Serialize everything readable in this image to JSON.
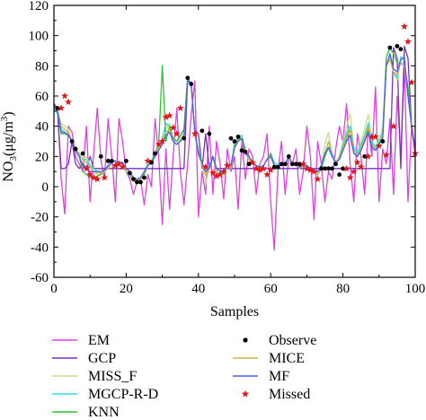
{
  "chart_data": {
    "type": "line",
    "xlabel": "Samples",
    "ylabel_main": "NO",
    "ylabel_sub": "3",
    "ylabel_units": "(μg/m",
    "ylabel_sup": "3",
    "ylabel_close": ")",
    "xlim": [
      0,
      100
    ],
    "ylim": [
      -60,
      120
    ],
    "xticks": [
      0,
      20,
      40,
      60,
      80,
      100
    ],
    "yticks": [
      -60,
      -40,
      -20,
      0,
      20,
      40,
      60,
      80,
      100,
      120
    ],
    "colors": {
      "EM": "#e040e0",
      "GCP": "#7b2fbe",
      "MISS_F": "#c5e08a",
      "MGCP-R-D": "#22e0e8",
      "KNN": "#2ec42e",
      "MICE": "#d9b04a",
      "MF": "#4a5fe8",
      "Missed": "#e01818",
      "Observe": "#000000"
    },
    "legend": {
      "left": [
        "EM",
        "GCP",
        "MISS_F",
        "MGCP-R-D",
        "KNN"
      ],
      "right": [
        "Observe",
        "MICE",
        "MF",
        "Missed"
      ]
    },
    "observe": {
      "x": [
        1,
        5,
        6,
        8,
        13,
        15,
        16,
        20,
        21,
        22,
        23,
        24,
        25,
        27,
        28,
        36,
        37,
        38,
        41,
        43,
        49,
        50,
        51,
        52,
        53,
        54,
        61,
        62,
        63,
        64,
        65,
        66,
        67,
        68,
        74,
        75,
        76,
        77,
        78,
        79,
        80,
        86,
        91,
        93,
        95,
        96
      ],
      "y": [
        52,
        30,
        25,
        22,
        20,
        17,
        17,
        17,
        9,
        5,
        3,
        3,
        6,
        16,
        22,
        32,
        72,
        68,
        37,
        35,
        32,
        30,
        33,
        24,
        23,
        15,
        13,
        13,
        15,
        15,
        20,
        15,
        15,
        15,
        12,
        12,
        12,
        12,
        15,
        8,
        12,
        20,
        30,
        92,
        93,
        91
      ]
    },
    "missed": {
      "x": [
        2,
        3,
        4,
        9,
        10,
        11,
        12,
        14,
        17,
        18,
        19,
        26,
        29,
        30,
        31,
        32,
        33,
        34,
        35,
        39,
        42,
        44,
        45,
        46,
        47,
        48,
        55,
        56,
        57,
        58,
        59,
        60,
        69,
        70,
        71,
        72,
        73,
        81,
        82,
        83,
        84,
        85,
        87,
        88,
        89,
        90,
        92,
        94,
        97,
        98,
        99,
        100
      ],
      "y": [
        52,
        60,
        56,
        12,
        8,
        6,
        5,
        6,
        14,
        15,
        13,
        17,
        28,
        30,
        46,
        47,
        39,
        35,
        52,
        35,
        13,
        9,
        7,
        8,
        10,
        14,
        16,
        12,
        11,
        12,
        8,
        11,
        15,
        12,
        11,
        10,
        5,
        12,
        6,
        10,
        16,
        13,
        20,
        33,
        33,
        27,
        21,
        40,
        106,
        96,
        69,
        22
      ]
    },
    "series": [
      {
        "name": "EM",
        "values": [
          55,
          52,
          5,
          -18,
          40,
          36,
          20,
          15,
          10,
          40,
          -10,
          22,
          52,
          18,
          5,
          45,
          20,
          -10,
          45,
          30,
          10,
          5,
          -5,
          3,
          5,
          -12,
          8,
          0,
          45,
          20,
          -25,
          25,
          -15,
          20,
          52,
          10,
          -12,
          15,
          48,
          70,
          -20,
          10,
          -5,
          40,
          -5,
          30,
          15,
          -8,
          25,
          10,
          20,
          -15,
          30,
          5,
          25,
          20,
          -5,
          15,
          20,
          35,
          -10,
          -42,
          10,
          30,
          -5,
          20,
          15,
          25,
          -5,
          10,
          40,
          20,
          -22,
          30,
          15,
          -10,
          10,
          5,
          25,
          40,
          30,
          55,
          15,
          -10,
          35,
          20,
          -5,
          40,
          20,
          66,
          -10,
          25,
          15,
          45,
          -5,
          60,
          20,
          80,
          -10,
          40,
          20
        ]
      },
      {
        "name": "GCP",
        "values": [
          55,
          50,
          12,
          12,
          15,
          30,
          15,
          12,
          15,
          12,
          20,
          12,
          12,
          12,
          12,
          12,
          12,
          12,
          12,
          12,
          12,
          12,
          12,
          12,
          12,
          12,
          12,
          12,
          12,
          12,
          12,
          12,
          12,
          12,
          12,
          12,
          12,
          70,
          68,
          37,
          35,
          12,
          35,
          12,
          20,
          12,
          12,
          12,
          12,
          12,
          12,
          12,
          12,
          12,
          12,
          12,
          12,
          12,
          12,
          12,
          12,
          12,
          12,
          12,
          12,
          12,
          12,
          12,
          12,
          12,
          12,
          12,
          12,
          12,
          12,
          12,
          12,
          12,
          12,
          12,
          12,
          12,
          12,
          12,
          12,
          12,
          12,
          12,
          12,
          12,
          12,
          12,
          12,
          12,
          92,
          85,
          12,
          93,
          85,
          40,
          25
        ]
      },
      {
        "name": "MISS_F",
        "values": [
          53,
          50,
          42,
          40,
          38,
          30,
          25,
          22,
          18,
          20,
          14,
          10,
          8,
          8,
          10,
          12,
          16,
          17,
          16,
          15,
          10,
          8,
          5,
          4,
          5,
          8,
          14,
          16,
          20,
          25,
          30,
          38,
          42,
          30,
          28,
          32,
          36,
          70,
          68,
          34,
          20,
          15,
          2,
          12,
          20,
          10,
          8,
          6,
          14,
          12,
          28,
          32,
          30,
          22,
          18,
          16,
          14,
          12,
          14,
          18,
          22,
          14,
          12,
          16,
          14,
          20,
          14,
          16,
          12,
          14,
          14,
          12,
          10,
          8,
          14,
          28,
          36,
          22,
          16,
          20,
          30,
          40,
          48,
          26,
          22,
          30,
          38,
          48,
          30,
          26,
          32,
          40,
          80,
          86,
          76,
          70,
          84,
          86,
          60,
          40
        ]
      },
      {
        "name": "MGCP-R-D",
        "values": [
          53,
          48,
          38,
          36,
          34,
          30,
          24,
          21,
          18,
          18,
          14,
          12,
          10,
          9,
          10,
          13,
          17,
          17,
          16,
          16,
          10,
          7,
          4,
          4,
          6,
          10,
          15,
          17,
          22,
          26,
          32,
          42,
          40,
          32,
          30,
          34,
          38,
          72,
          68,
          36,
          24,
          16,
          10,
          14,
          20,
          12,
          10,
          8,
          14,
          14,
          28,
          32,
          34,
          24,
          20,
          16,
          14,
          13,
          14,
          18,
          22,
          16,
          14,
          16,
          15,
          20,
          15,
          16,
          13,
          14,
          14,
          12,
          10,
          8,
          14,
          22,
          30,
          22,
          16,
          20,
          28,
          36,
          40,
          26,
          22,
          28,
          34,
          42,
          30,
          26,
          30,
          36,
          80,
          88,
          76,
          72,
          86,
          84,
          62,
          40
        ]
      },
      {
        "name": "KNN",
        "values": [
          52,
          50,
          35,
          35,
          34,
          30,
          24,
          20,
          10,
          8,
          6,
          6,
          7,
          8,
          10,
          14,
          16,
          17,
          16,
          15,
          10,
          8,
          4,
          3,
          5,
          8,
          14,
          16,
          22,
          28,
          80,
          30,
          40,
          32,
          30,
          34,
          38,
          72,
          68,
          36,
          22,
          16,
          8,
          12,
          20,
          10,
          8,
          8,
          14,
          12,
          28,
          32,
          32,
          24,
          20,
          16,
          14,
          12,
          14,
          18,
          22,
          14,
          12,
          16,
          14,
          20,
          14,
          16,
          12,
          14,
          14,
          12,
          10,
          8,
          12,
          20,
          26,
          20,
          16,
          18,
          26,
          32,
          38,
          24,
          20,
          24,
          30,
          38,
          28,
          24,
          28,
          34,
          86,
          92,
          88,
          82,
          82,
          80,
          66,
          40
        ]
      },
      {
        "name": "MICE",
        "values": [
          53,
          50,
          40,
          38,
          36,
          30,
          25,
          22,
          18,
          16,
          13,
          10,
          9,
          9,
          10,
          12,
          16,
          17,
          16,
          15,
          10,
          8,
          5,
          4,
          5,
          9,
          14,
          16,
          20,
          26,
          30,
          36,
          38,
          30,
          28,
          30,
          34,
          70,
          68,
          35,
          22,
          15,
          8,
          12,
          20,
          10,
          8,
          8,
          14,
          12,
          26,
          30,
          32,
          22,
          18,
          16,
          14,
          12,
          14,
          18,
          20,
          14,
          12,
          16,
          14,
          20,
          14,
          16,
          12,
          14,
          14,
          12,
          10,
          8,
          14,
          22,
          30,
          20,
          16,
          20,
          26,
          34,
          38,
          24,
          20,
          26,
          32,
          40,
          28,
          24,
          28,
          34,
          80,
          84,
          76,
          74,
          82,
          80,
          60,
          40
        ]
      },
      {
        "name": "MF",
        "values": [
          54,
          50,
          36,
          36,
          34,
          30,
          24,
          20,
          14,
          12,
          10,
          10,
          10,
          10,
          11,
          14,
          16,
          17,
          16,
          16,
          12,
          10,
          6,
          5,
          6,
          10,
          14,
          16,
          20,
          24,
          28,
          34,
          36,
          30,
          28,
          30,
          34,
          70,
          68,
          36,
          22,
          16,
          10,
          12,
          20,
          12,
          10,
          10,
          14,
          14,
          26,
          30,
          32,
          22,
          20,
          16,
          14,
          13,
          14,
          18,
          20,
          14,
          13,
          16,
          15,
          20,
          15,
          16,
          13,
          14,
          14,
          12,
          10,
          10,
          14,
          22,
          26,
          20,
          16,
          18,
          24,
          30,
          34,
          22,
          20,
          24,
          30,
          36,
          26,
          24,
          28,
          32,
          80,
          88,
          78,
          76,
          84,
          86,
          60,
          40
        ]
      }
    ]
  }
}
